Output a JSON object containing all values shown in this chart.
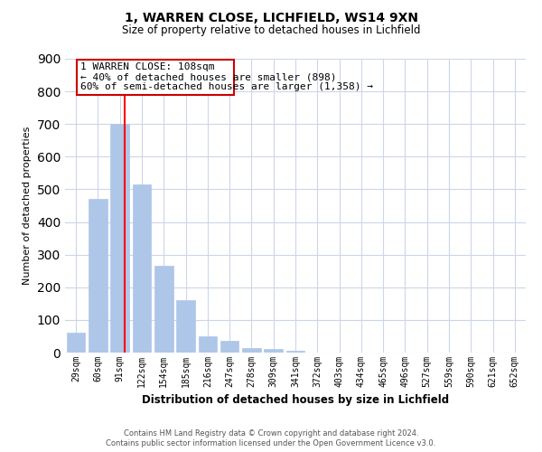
{
  "title": "1, WARREN CLOSE, LICHFIELD, WS14 9XN",
  "subtitle": "Size of property relative to detached houses in Lichfield",
  "xlabel": "Distribution of detached houses by size in Lichfield",
  "ylabel": "Number of detached properties",
  "bin_labels": [
    "29sqm",
    "60sqm",
    "91sqm",
    "122sqm",
    "154sqm",
    "185sqm",
    "216sqm",
    "247sqm",
    "278sqm",
    "309sqm",
    "341sqm",
    "372sqm",
    "403sqm",
    "434sqm",
    "465sqm",
    "496sqm",
    "527sqm",
    "559sqm",
    "590sqm",
    "621sqm",
    "652sqm"
  ],
  "bar_heights": [
    60,
    470,
    700,
    515,
    265,
    160,
    50,
    35,
    15,
    10,
    5,
    0,
    0,
    0,
    0,
    0,
    0,
    0,
    0,
    0,
    0
  ],
  "bar_color": "#aec6e8",
  "bar_edge_color": "#aec6e8",
  "annotation_title": "1 WARREN CLOSE: 108sqm",
  "annotation_line1": "← 40% of detached houses are smaller (898)",
  "annotation_line2": "60% of semi-detached houses are larger (1,358) →",
  "ylim": [
    0,
    900
  ],
  "yticks": [
    0,
    100,
    200,
    300,
    400,
    500,
    600,
    700,
    800,
    900
  ],
  "footer1": "Contains HM Land Registry data © Crown copyright and database right 2024.",
  "footer2": "Contains public sector information licensed under the Open Government Licence v3.0.",
  "background_color": "#ffffff",
  "grid_color": "#ccd6e8"
}
